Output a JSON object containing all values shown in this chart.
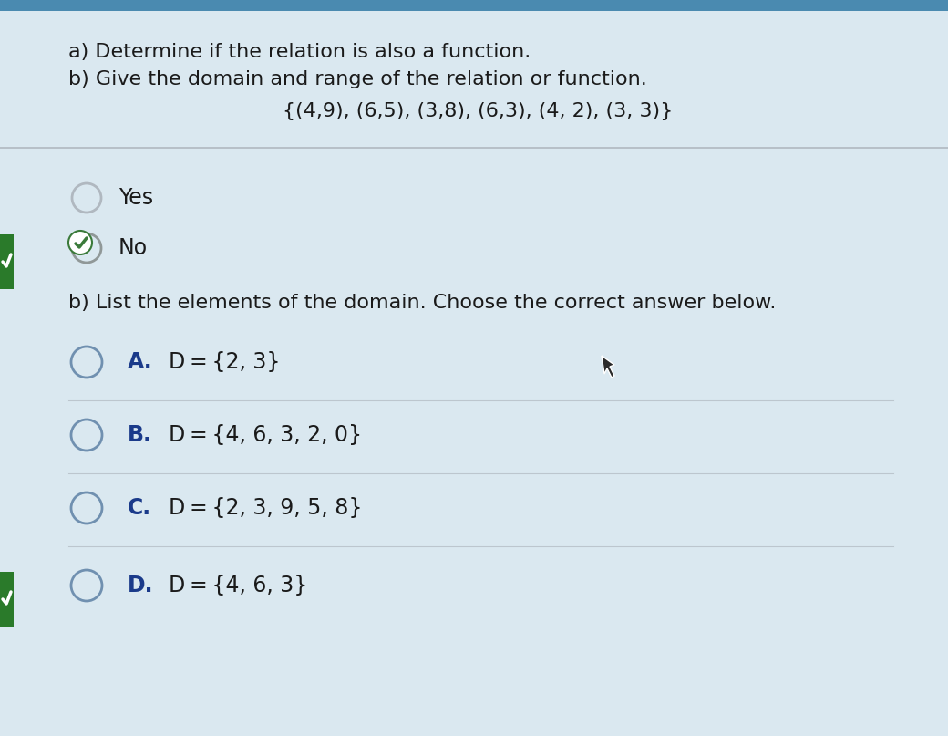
{
  "bg_color": "#cdd9e0",
  "bg_color2": "#dae8f0",
  "header_bg": "#4a8ab0",
  "title_line1": "a) Determine if the relation is also a function.",
  "title_line2": "b) Give the domain and range of the relation or function.",
  "relation": "{(4,9), (6,5), (3,8), (6,3), (4, 2), (3, 3)}",
  "yes_label": "Yes",
  "no_label": "No",
  "part_b_label": "b) List the elements of the domain. Choose the correct answer below.",
  "choices": [
    {
      "letter": "A.",
      "text": "D = {2, 3}"
    },
    {
      "letter": "B.",
      "text": "D = {4, 6, 3, 2, 0}"
    },
    {
      "letter": "C.",
      "text": "D = {2, 3, 9, 5, 8}"
    },
    {
      "letter": "D.",
      "text": "D = {4, 6, 3}"
    }
  ],
  "circle_color_unselected": "#b0b8c0",
  "circle_color_choice": "#7090b0",
  "circle_color_selected_edge": "#909898",
  "checkmark_color": "#3a7a3a",
  "text_color": "#1a1a1a",
  "choice_letter_color": "#1a3a8a",
  "choice_text_color": "#1a1a1a",
  "divider_color": "#b0b8c0",
  "font_size_title": 16,
  "font_size_relation": 16,
  "font_size_options": 17,
  "font_size_partb": 16,
  "font_size_choices": 17
}
